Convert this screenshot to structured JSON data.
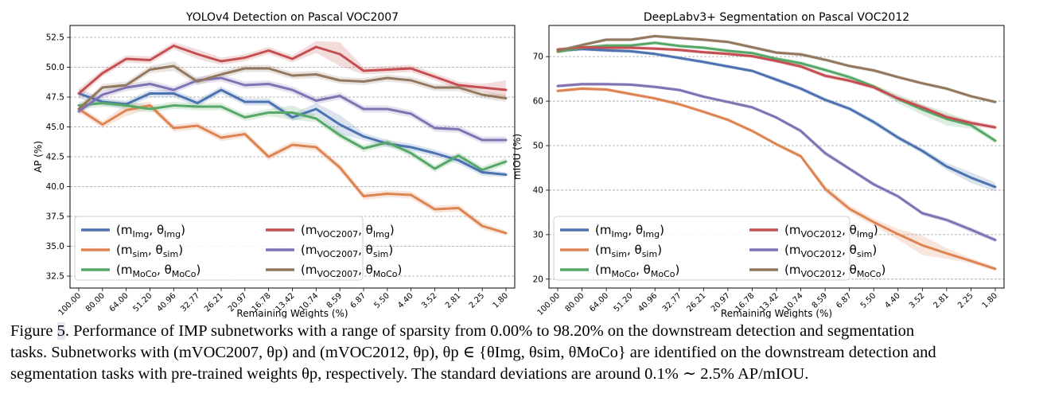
{
  "x_tick_labels": [
    "100.00",
    "80.00",
    "64.00",
    "51.20",
    "40.96",
    "32.77",
    "26.21",
    "20.97",
    "16.78",
    "13.42",
    "10.74",
    "8.59",
    "6.87",
    "5.50",
    "4.40",
    "3.52",
    "2.81",
    "2.25",
    "1.80"
  ],
  "chart_data": [
    {
      "type": "line",
      "title": "YOLOv4 Detection on Pascal VOC2007",
      "xlabel": "Remaining Weights (%)",
      "ylabel": "AP (%)",
      "ylim": [
        31.5,
        53.5
      ],
      "yticks": [
        "32.5",
        "35.0",
        "37.5",
        "40.0",
        "42.5",
        "45.0",
        "47.5",
        "50.0",
        "52.5"
      ],
      "grid": "horizontal dashed",
      "legend_placement": "lower-left",
      "legend_columns": 2,
      "series": [
        {
          "name": "(mImg, θImg)",
          "color": "#4c72b0",
          "values": [
            47.8,
            47.1,
            46.9,
            47.8,
            47.8,
            47.0,
            48.1,
            47.1,
            47.1,
            45.8,
            46.5,
            45.2,
            44.2,
            43.6,
            43.3,
            42.8,
            42.2,
            41.2,
            41.0
          ],
          "band": [
            0.4,
            0.3,
            0.3,
            0.3,
            0.3,
            0.3,
            0.3,
            0.3,
            0.3,
            0.3,
            0.5,
            0.8,
            0.3,
            0.3,
            0.3,
            0.3,
            0.3,
            0.3,
            0.2
          ]
        },
        {
          "name": "(msim, θsim)",
          "color": "#dd8452",
          "values": [
            46.5,
            45.2,
            46.4,
            46.8,
            44.9,
            45.1,
            44.1,
            44.4,
            42.5,
            43.5,
            43.3,
            41.6,
            39.2,
            39.4,
            39.3,
            38.1,
            38.2,
            36.7,
            36.1
          ],
          "band": [
            0.3,
            0.3,
            0.5,
            0.3,
            0.3,
            0.3,
            0.3,
            0.3,
            0.3,
            0.3,
            0.3,
            0.3,
            0.3,
            0.3,
            0.3,
            0.3,
            0.3,
            0.3,
            0.2
          ]
        },
        {
          "name": "(mMoCo, θMoCo)",
          "color": "#55a868",
          "values": [
            46.8,
            47.0,
            46.8,
            46.5,
            46.8,
            46.7,
            46.7,
            45.8,
            46.2,
            46.2,
            45.7,
            44.3,
            43.2,
            43.7,
            42.8,
            41.5,
            42.6,
            41.4,
            42.1
          ],
          "band": [
            0.3,
            0.3,
            0.3,
            0.3,
            0.3,
            0.3,
            0.3,
            0.3,
            0.3,
            0.6,
            0.3,
            0.3,
            0.3,
            0.3,
            0.3,
            0.3,
            0.3,
            0.3,
            0.3
          ]
        },
        {
          "name": "(mVOC2007, θImg)",
          "color": "#c44e52",
          "values": [
            47.8,
            49.5,
            50.7,
            50.6,
            51.8,
            51.1,
            50.5,
            50.8,
            51.4,
            50.7,
            51.7,
            51.1,
            49.7,
            49.8,
            49.9,
            49.2,
            48.5,
            48.3,
            48.1
          ],
          "band": [
            0.4,
            0.3,
            0.3,
            0.3,
            0.3,
            0.4,
            0.3,
            0.3,
            0.3,
            0.3,
            0.5,
            1.0,
            0.3,
            0.3,
            0.3,
            0.3,
            0.3,
            0.3,
            0.8
          ]
        },
        {
          "name": "(mVOC2007, θsim)",
          "color": "#8172b3",
          "values": [
            46.3,
            47.7,
            48.3,
            48.6,
            48.1,
            48.9,
            49.1,
            48.5,
            48.6,
            48.1,
            47.2,
            47.6,
            46.5,
            46.5,
            46.1,
            44.9,
            44.8,
            43.9,
            43.9
          ],
          "band": [
            0.3,
            0.3,
            0.3,
            0.3,
            0.3,
            0.3,
            0.3,
            0.3,
            0.3,
            0.3,
            0.3,
            0.3,
            0.3,
            0.3,
            0.3,
            0.3,
            0.3,
            0.3,
            0.3
          ]
        },
        {
          "name": "(mVOC2007, θMoCo)",
          "color": "#937860",
          "values": [
            46.5,
            48.3,
            48.5,
            49.8,
            50.1,
            48.8,
            49.4,
            49.9,
            49.9,
            49.3,
            49.4,
            48.9,
            48.8,
            49.1,
            48.9,
            48.3,
            48.3,
            47.7,
            47.4
          ],
          "band": [
            0.3,
            0.3,
            0.3,
            0.3,
            0.4,
            0.3,
            0.3,
            0.3,
            0.3,
            0.3,
            0.3,
            0.3,
            0.3,
            0.3,
            0.3,
            0.3,
            0.3,
            0.3,
            0.3
          ]
        }
      ]
    },
    {
      "type": "line",
      "title": "DeepLabv3+ Segmentation on Pascal VOC2012",
      "xlabel": "Remaining Weights (%)",
      "ylabel": "mIOU (%)",
      "ylim": [
        18,
        77
      ],
      "yticks": [
        "20",
        "30",
        "40",
        "50",
        "60",
        "70"
      ],
      "grid": "horizontal dashed",
      "legend_placement": "lower-left",
      "legend_columns": 2,
      "series": [
        {
          "name": "(mImg, θImg)",
          "color": "#4c72b0",
          "values": [
            71.3,
            71.7,
            71.4,
            71.2,
            70.6,
            69.7,
            68.8,
            67.8,
            66.8,
            64.8,
            62.8,
            60.3,
            58.3,
            55.3,
            51.8,
            48.8,
            45.3,
            42.8,
            40.7
          ],
          "band": [
            0.4,
            0.4,
            0.4,
            0.4,
            0.4,
            0.4,
            0.4,
            0.4,
            0.4,
            0.5,
            0.5,
            0.5,
            0.5,
            0.6,
            0.6,
            0.6,
            0.8,
            1.2,
            1.0
          ]
        },
        {
          "name": "(msim, θsim)",
          "color": "#dd8452",
          "values": [
            62.3,
            62.8,
            62.6,
            61.6,
            60.6,
            59.3,
            57.6,
            55.8,
            53.3,
            50.3,
            47.6,
            40.3,
            35.8,
            32.8,
            30.1,
            27.6,
            25.8,
            24.1,
            22.3
          ],
          "band": [
            0.4,
            0.4,
            0.4,
            0.4,
            0.4,
            0.4,
            0.4,
            0.4,
            0.4,
            0.4,
            0.5,
            0.8,
            0.8,
            0.8,
            1.2,
            2.2,
            1.2,
            0.6,
            0.5
          ]
        },
        {
          "name": "(mMoCo, θMoCo)",
          "color": "#55a868",
          "values": [
            71.1,
            72.0,
            72.5,
            72.5,
            73.1,
            72.4,
            72.0,
            71.3,
            70.8,
            69.5,
            68.5,
            67.0,
            65.4,
            63.3,
            60.5,
            58.1,
            56.0,
            54.6,
            51.1
          ],
          "band": [
            0.4,
            0.4,
            0.4,
            0.4,
            0.4,
            0.4,
            0.4,
            0.4,
            0.4,
            0.4,
            0.5,
            0.5,
            0.5,
            0.5,
            1.0,
            1.2,
            1.5,
            0.8,
            0.6
          ]
        },
        {
          "name": "(mVOC2012, θImg)",
          "color": "#c44e52",
          "values": [
            71.6,
            72.1,
            72.0,
            72.0,
            71.8,
            71.5,
            71.0,
            70.6,
            70.1,
            69.0,
            67.8,
            65.7,
            64.6,
            63.1,
            60.6,
            58.6,
            56.4,
            55.1,
            54.1
          ],
          "band": [
            0.4,
            0.4,
            0.4,
            0.4,
            0.4,
            0.4,
            0.4,
            0.4,
            0.4,
            0.4,
            0.5,
            0.5,
            0.5,
            0.5,
            0.6,
            0.6,
            0.6,
            0.6,
            0.5
          ]
        },
        {
          "name": "(mVOC2012, θsim)",
          "color": "#8172b3",
          "values": [
            63.4,
            63.8,
            63.8,
            63.7,
            63.2,
            62.5,
            61.0,
            59.8,
            58.6,
            56.3,
            53.3,
            48.3,
            44.8,
            41.3,
            38.6,
            34.8,
            33.3,
            31.1,
            28.8
          ],
          "band": [
            0.4,
            0.4,
            0.4,
            0.4,
            0.4,
            0.4,
            0.4,
            0.4,
            0.4,
            0.4,
            0.5,
            0.6,
            0.5,
            0.5,
            0.5,
            0.5,
            0.5,
            0.6,
            0.5
          ]
        },
        {
          "name": "(mVOC2012, θMoCo)",
          "color": "#937860",
          "values": [
            71.3,
            72.6,
            73.8,
            73.8,
            74.6,
            74.2,
            73.8,
            73.3,
            72.1,
            70.9,
            70.5,
            69.3,
            67.9,
            66.9,
            65.4,
            64.0,
            62.8,
            61.1,
            59.8
          ],
          "band": [
            0.4,
            0.4,
            0.4,
            0.4,
            0.4,
            0.4,
            0.4,
            0.4,
            0.4,
            0.4,
            0.4,
            0.4,
            0.4,
            0.4,
            0.4,
            0.4,
            0.4,
            0.4,
            0.4
          ]
        }
      ]
    }
  ],
  "caption": {
    "fig_label": "Figure ",
    "fig_number": "5",
    "line1_rest": ". Performance of IMP subnetworks with a range of sparsity from 0.00% to 98.20% on the downstream detection and segmentation",
    "line2": "tasks. Subnetworks with (mVOC2007, θp) and (mVOC2012, θp), θp ∈ {θImg, θsim, θMoCo} are identified on the downstream detection and",
    "line3": "segmentation tasks with pre-trained weights θp, respectively. The standard deviations are around 0.1% ∼ 2.5% AP/mIOU."
  }
}
